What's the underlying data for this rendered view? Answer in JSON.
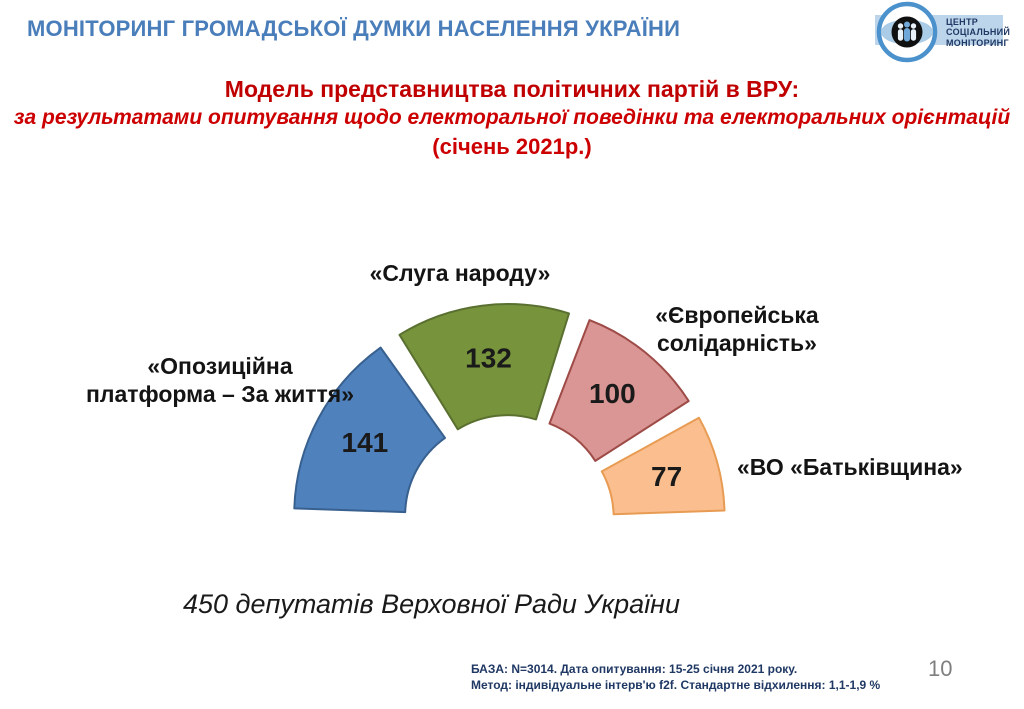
{
  "header": {
    "title": "МОНІТОРИНГ ГРОМАДСЬКОЇ ДУМКИ НАСЕЛЕННЯ УКРАЇНИ"
  },
  "logo": {
    "lines": [
      "ЦЕНТР",
      "СОЦІАЛЬНИЙ",
      "МОНІТОРИНГ"
    ]
  },
  "title": {
    "line1": "Модель представництва політичних партій в ВРУ:",
    "line2": "за результатами опитування щодо електоральної поведінки та електоральних орієнтацій",
    "line3": "(січень 2021р.)"
  },
  "chart_data": {
    "type": "pie",
    "subtype": "half-donut-exploded",
    "title": "Модель представництва політичних партій в ВРУ",
    "categories": [
      "«Опозиційна платформа – За життя»",
      "«Слуга народу»",
      "«Європейська солідарність»",
      "«ВО «Батьківщина»"
    ],
    "display_labels": [
      "«Опозиційна\nплатформа – За життя»",
      "«Слуга народу»",
      "«Європейська\nсолідарність»",
      "«ВО «Батьківщина»"
    ],
    "values": [
      141,
      132,
      100,
      77
    ],
    "total": 450,
    "start_angle_deg": 180,
    "end_angle_deg": 0,
    "inner_radius_ratio": 0.46,
    "legend": "none",
    "colors": [
      "#4F81BD",
      "#77933C",
      "#D99694",
      "#FBBF8F"
    ],
    "border_colors": [
      "#38608F",
      "#5A7030",
      "#9E4B47",
      "#E89B52"
    ],
    "caption": "450 депутатів Верховної Ради України"
  },
  "footer": {
    "line1": "БАЗА: N=3014. Дата опитування: 15-25 січня 2021 року.",
    "line2": "Метод: індивідуальне інтерв'ю f2f. Стандартне відхилення: 1,1-1,9 %",
    "page_number": "10"
  },
  "theme_colors": {
    "header_blue": "#4A7EBA",
    "title_red": "#C00000",
    "subtitle_red": "#CC0000",
    "footer_navy": "#1F3864",
    "page_gray": "#7F7F7F",
    "logo_band_blue": "#BDD5EA",
    "logo_ring_blue": "#4B92CD"
  }
}
